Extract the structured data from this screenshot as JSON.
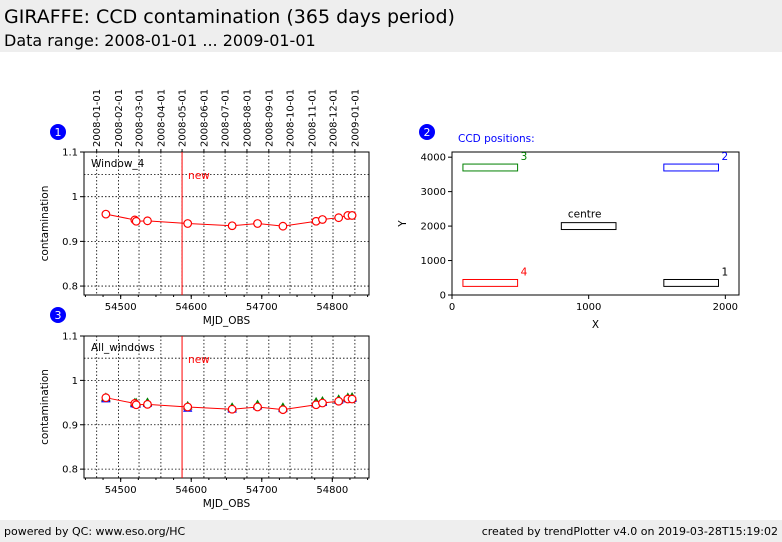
{
  "header": {
    "title": "GIRAFFE: CCD contamination (365 days period)",
    "subtitle": "Data range: 2008-01-01 ... 2009-01-01"
  },
  "footer": {
    "left": "powered by QC: www.eso.org/HC",
    "right": "created by trendPlotter v4.0 on 2019-03-28T15:19:02"
  },
  "colors": {
    "line": "#ff0000",
    "marker_badge": "#0000ff",
    "window1": "#000000",
    "window2": "#0000ff",
    "window3": "#008000",
    "window4": "#ff0000"
  },
  "chart_data": [
    {
      "type": "line",
      "badge": "1",
      "label": "Window_4",
      "marker_text": "new",
      "marker_x": 54587,
      "xlabel": "MJD_OBS",
      "ylabel": "contamination",
      "xlim": [
        54448,
        54852
      ],
      "ylim": [
        0.78,
        1.1
      ],
      "xticks": [
        "54500",
        "54600",
        "54700",
        "54800"
      ],
      "yticks": [
        "0.8",
        "0.9",
        "1",
        "1.1"
      ],
      "date_axis": {
        "labels": [
          "2008-01-01",
          "2008-02-01",
          "2008-03-01",
          "2008-04-01",
          "2008-05-01",
          "2008-06-01",
          "2008-07-01",
          "2008-08-01",
          "2008-09-01",
          "2008-10-01",
          "2008-11-01",
          "2008-12-01",
          "2009-01-01"
        ],
        "mjd": [
          54466,
          54497,
          54526,
          54557,
          54587,
          54618,
          54648,
          54679,
          54710,
          54740,
          54771,
          54801,
          54832
        ]
      },
      "grid": true,
      "series": [
        {
          "x": [
            54479,
            54520,
            54522,
            54538,
            54595,
            54658,
            54694,
            54730,
            54777,
            54786,
            54809,
            54822,
            54828
          ],
          "y": [
            0.961,
            0.948,
            0.945,
            0.946,
            0.94,
            0.935,
            0.94,
            0.934,
            0.945,
            0.949,
            0.953,
            0.958,
            0.958
          ]
        }
      ]
    },
    {
      "type": "line",
      "badge": "3",
      "label": "All_windows",
      "marker_text": "new",
      "marker_x": 54587,
      "xlabel": "MJD_OBS",
      "ylabel": "contamination",
      "xlim": [
        54448,
        54852
      ],
      "ylim": [
        0.78,
        1.1
      ],
      "xticks": [
        "54500",
        "54600",
        "54700",
        "54800"
      ],
      "yticks": [
        "0.8",
        "0.9",
        "1",
        "1.1"
      ],
      "grid": true,
      "x": [
        54479,
        54520,
        54522,
        54538,
        54595,
        54658,
        54694,
        54730,
        54777,
        54786,
        54809,
        54822,
        54828
      ],
      "fit_line": [
        0.961,
        0.948,
        0.945,
        0.946,
        0.94,
        0.935,
        0.94,
        0.934,
        0.945,
        0.949,
        0.953,
        0.958,
        0.958
      ],
      "series": [
        {
          "window": "1",
          "y": [
            0.96,
            0.949,
            0.949,
            0.95,
            0.942,
            0.938,
            0.944,
            0.938,
            0.95,
            0.952,
            0.956,
            0.96,
            0.961
          ]
        },
        {
          "window": "2",
          "y": [
            0.958,
            0.947,
            0.946,
            0.948,
            0.937,
            0.935,
            0.942,
            0.936,
            0.948,
            0.95,
            0.955,
            0.958,
            0.959
          ]
        },
        {
          "window": "3",
          "y": [
            0.962,
            0.95,
            0.95,
            0.951,
            0.943,
            0.94,
            0.946,
            0.94,
            0.952,
            0.954,
            0.958,
            0.962,
            0.963
          ]
        },
        {
          "window": "4",
          "y": [
            0.961,
            0.948,
            0.945,
            0.946,
            0.94,
            0.935,
            0.94,
            0.934,
            0.945,
            0.949,
            0.953,
            0.958,
            0.958
          ]
        }
      ]
    },
    {
      "type": "diagram",
      "badge": "2",
      "title": "CCD positions:",
      "xlabel": "X",
      "ylabel": "Y",
      "xlim": [
        0,
        2100
      ],
      "ylim": [
        0,
        4150
      ],
      "xticks": [
        "0",
        "1000",
        "2000"
      ],
      "yticks": [
        "0",
        "1000",
        "2000",
        "3000",
        "4000"
      ],
      "windows": [
        {
          "label": "1",
          "x0": 1550,
          "x1": 1950,
          "y0": 250,
          "y1": 450,
          "color": "#000000"
        },
        {
          "label": "2",
          "x0": 1550,
          "x1": 1950,
          "y0": 3600,
          "y1": 3800,
          "color": "#0000ff"
        },
        {
          "label": "3",
          "x0": 80,
          "x1": 480,
          "y0": 3600,
          "y1": 3800,
          "color": "#008000"
        },
        {
          "label": "4",
          "x0": 80,
          "x1": 480,
          "y0": 250,
          "y1": 450,
          "color": "#ff0000"
        },
        {
          "label": "centre",
          "x0": 800,
          "x1": 1200,
          "y0": 1900,
          "y1": 2100,
          "color": "#000000"
        }
      ]
    }
  ]
}
